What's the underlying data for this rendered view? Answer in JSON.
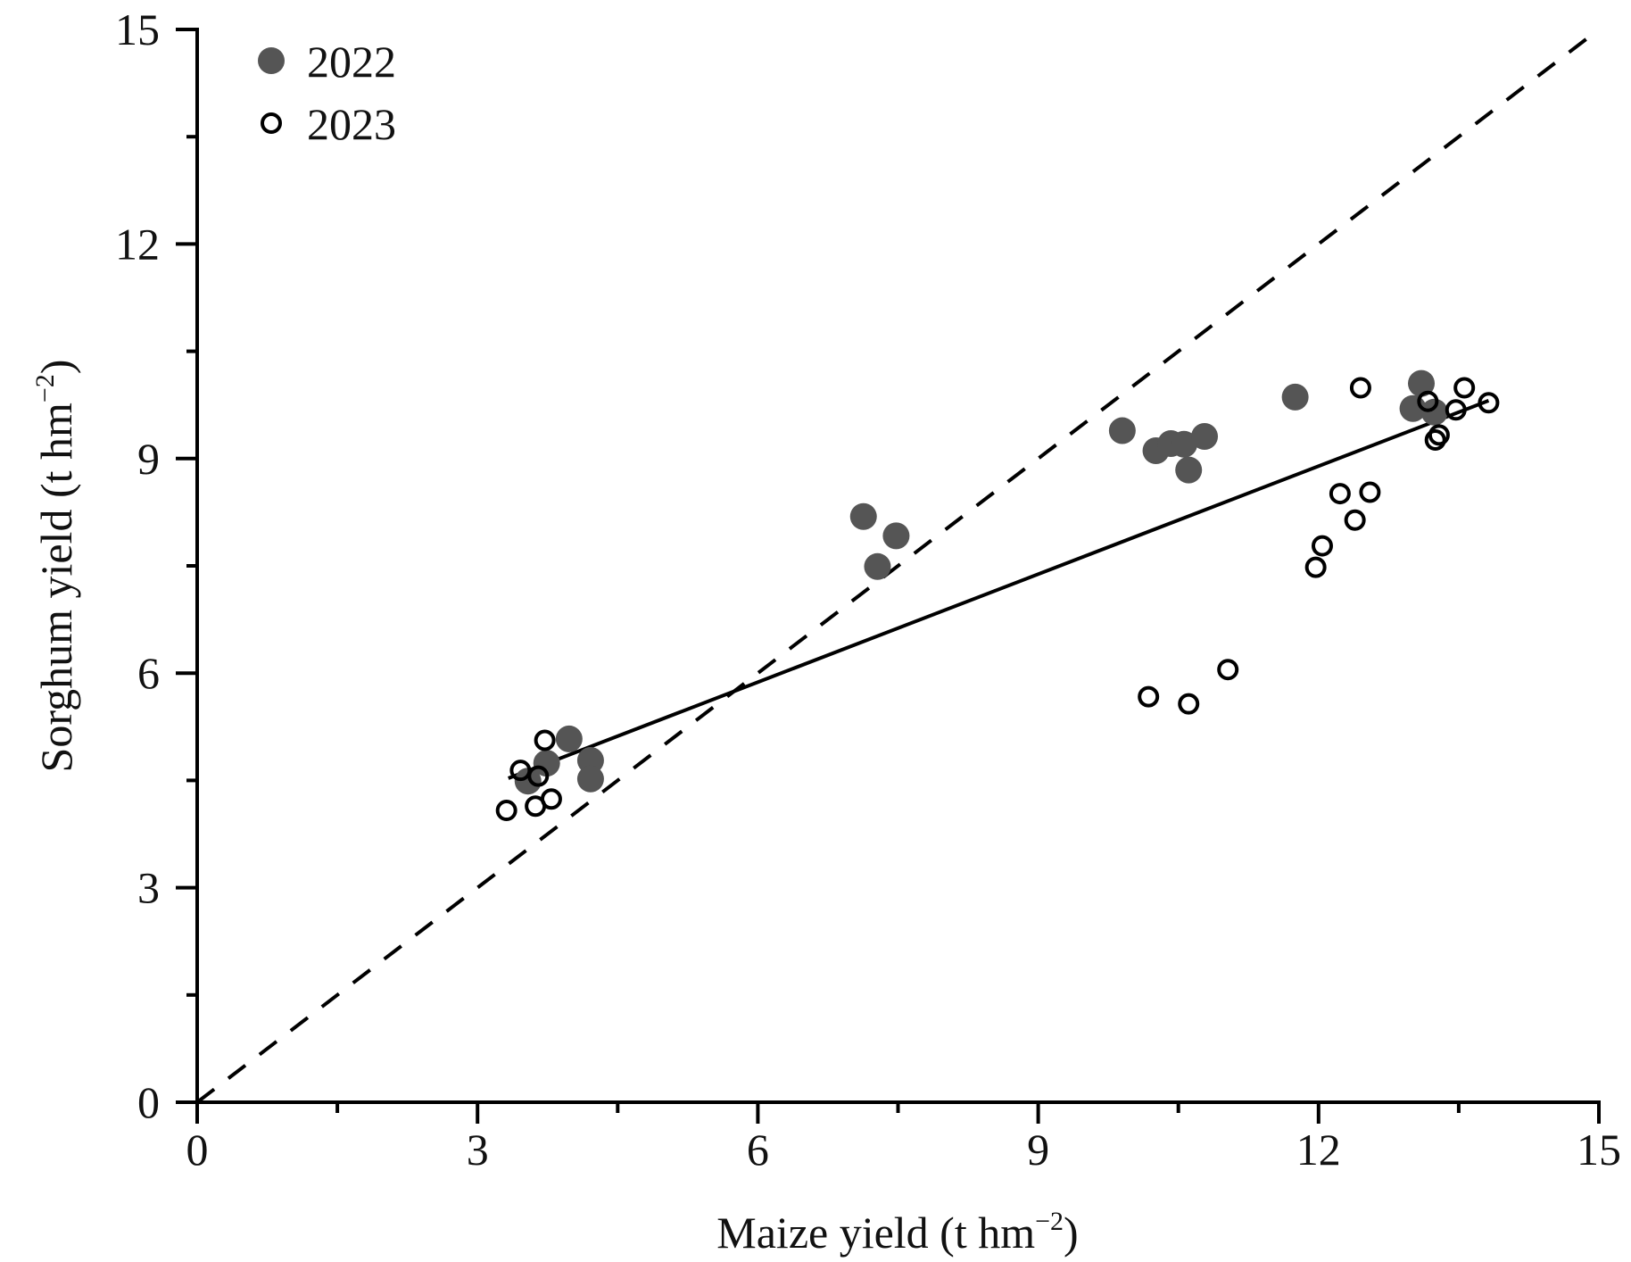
{
  "chart_data": {
    "type": "scatter",
    "title": "",
    "xlabel": "Maize yield (t hm",
    "xlabel_sup": "−2",
    "xlabel_close": ")",
    "ylabel": "Sorghum yield (t hm",
    "ylabel_sup": "−2",
    "ylabel_close": ")",
    "xlim": [
      0,
      15
    ],
    "ylim": [
      0,
      15
    ],
    "xticks": [
      0,
      3,
      6,
      9,
      12,
      15
    ],
    "yticks": [
      0,
      3,
      6,
      9,
      12,
      15
    ],
    "xtick_labels": [
      "0",
      "3",
      "6",
      "9",
      "12",
      "15"
    ],
    "ytick_labels": [
      "0",
      "3",
      "6",
      "9",
      "12",
      "15"
    ],
    "minor_ticks": [
      1.5,
      4.5,
      7.5,
      10.5,
      13.5
    ],
    "grid": false,
    "legend_position": "top-left",
    "series": [
      {
        "name": "2022",
        "marker": "filled-circle",
        "color": "#555555",
        "points": [
          [
            3.98,
            5.08
          ],
          [
            3.74,
            4.74
          ],
          [
            3.54,
            4.49
          ],
          [
            4.21,
            4.78
          ],
          [
            4.21,
            4.52
          ],
          [
            7.13,
            8.19
          ],
          [
            7.48,
            7.92
          ],
          [
            7.28,
            7.49
          ],
          [
            9.9,
            9.39
          ],
          [
            10.26,
            9.11
          ],
          [
            10.42,
            9.21
          ],
          [
            10.56,
            9.2
          ],
          [
            10.78,
            9.31
          ],
          [
            10.61,
            8.84
          ],
          [
            11.75,
            9.86
          ],
          [
            13.1,
            10.05
          ],
          [
            13.01,
            9.7
          ],
          [
            13.24,
            9.65
          ]
        ]
      },
      {
        "name": "2023",
        "marker": "open-circle",
        "color": "#000000",
        "points": [
          [
            3.72,
            5.06
          ],
          [
            3.46,
            4.64
          ],
          [
            3.65,
            4.56
          ],
          [
            3.31,
            4.08
          ],
          [
            3.62,
            4.14
          ],
          [
            3.79,
            4.24
          ],
          [
            10.18,
            5.67
          ],
          [
            10.61,
            5.57
          ],
          [
            11.03,
            6.05
          ],
          [
            11.97,
            7.48
          ],
          [
            12.04,
            7.78
          ],
          [
            12.23,
            8.51
          ],
          [
            12.55,
            8.53
          ],
          [
            12.39,
            8.14
          ],
          [
            12.45,
            9.99
          ],
          [
            13.17,
            9.8
          ],
          [
            13.56,
            9.99
          ],
          [
            13.47,
            9.68
          ],
          [
            13.82,
            9.78
          ],
          [
            13.29,
            9.33
          ],
          [
            13.25,
            9.26
          ]
        ]
      }
    ],
    "lines": [
      {
        "name": "regression-line",
        "style": "solid",
        "color": "#000000",
        "from": [
          3.33,
          4.53
        ],
        "to": [
          13.82,
          9.81
        ]
      },
      {
        "name": "one-to-one-line",
        "style": "dashed",
        "color": "#000000",
        "from": [
          0,
          0
        ],
        "to": [
          15,
          15
        ]
      }
    ]
  }
}
